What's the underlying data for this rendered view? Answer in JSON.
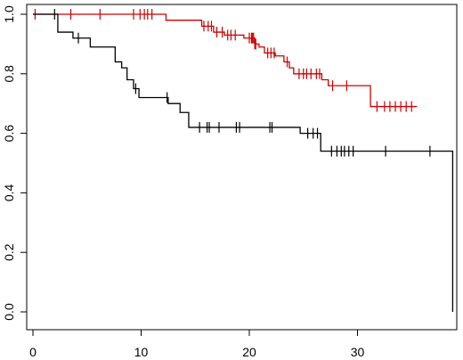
{
  "chart_data": {
    "type": "line",
    "subtype": "kaplan-meier",
    "title": "",
    "xlabel": "",
    "ylabel": "",
    "xlim": [
      0,
      40
    ],
    "ylim": [
      0,
      1
    ],
    "x_ticks": [
      0,
      10,
      20,
      30
    ],
    "x_tick_labels": [
      "0",
      "10",
      "20",
      "30"
    ],
    "y_ticks": [
      0,
      0.2,
      0.4,
      0.6,
      0.8,
      1.0
    ],
    "y_tick_labels": [
      "0.0",
      "0.2",
      "0.4",
      "0.6",
      "0.8",
      "1.0"
    ],
    "grid": false,
    "legend": "none",
    "series": [
      {
        "color": "#cc0000",
        "steps": [
          [
            0,
            1.0
          ],
          [
            12.3,
            0.98
          ],
          [
            15.6,
            0.96
          ],
          [
            16.7,
            0.94
          ],
          [
            17.7,
            0.93
          ],
          [
            19.5,
            0.92
          ],
          [
            20.5,
            0.9
          ],
          [
            20.9,
            0.89
          ],
          [
            21.4,
            0.87
          ],
          [
            22.4,
            0.86
          ],
          [
            23.2,
            0.84
          ],
          [
            23.7,
            0.82
          ],
          [
            24.1,
            0.8
          ],
          [
            26.7,
            0.78
          ],
          [
            27.3,
            0.76
          ],
          [
            31.2,
            0.69
          ],
          [
            35.5,
            0.69
          ]
        ],
        "censor_x": [
          0.2,
          3.5,
          6.2,
          9.3,
          9.9,
          10.3,
          10.6,
          11.0,
          15.8,
          16.2,
          16.5,
          17.0,
          17.5,
          18.0,
          18.3,
          18.7,
          20.0,
          20.2,
          20.3,
          20.4,
          20.5,
          20.6,
          21.7,
          22.0,
          22.3,
          23.5,
          24.6,
          25.0,
          25.3,
          25.7,
          26.2,
          26.5,
          27.7,
          29.0,
          31.8,
          32.5,
          33.0,
          33.5,
          34.0,
          34.5,
          35.0
        ]
      },
      {
        "color": "#000000",
        "steps": [
          [
            0,
            1.0
          ],
          [
            2.3,
            0.94
          ],
          [
            3.7,
            0.92
          ],
          [
            5.3,
            0.89
          ],
          [
            7.6,
            0.84
          ],
          [
            8.2,
            0.82
          ],
          [
            8.7,
            0.78
          ],
          [
            9.3,
            0.75
          ],
          [
            9.8,
            0.72
          ],
          [
            12.5,
            0.7
          ],
          [
            13.6,
            0.67
          ],
          [
            14.4,
            0.62
          ],
          [
            24.7,
            0.6
          ],
          [
            26.6,
            0.54
          ],
          [
            38.8,
            0.54
          ],
          [
            38.8,
            0.0
          ]
        ],
        "censor_x": [
          2.0,
          4.2,
          9.5,
          12.4,
          15.4,
          16.1,
          16.3,
          17.2,
          18.8,
          19.1,
          21.9,
          22.1,
          25.4,
          25.9,
          26.3,
          27.6,
          28.1,
          28.5,
          28.8,
          29.2,
          29.6,
          32.6,
          36.7
        ]
      }
    ]
  }
}
